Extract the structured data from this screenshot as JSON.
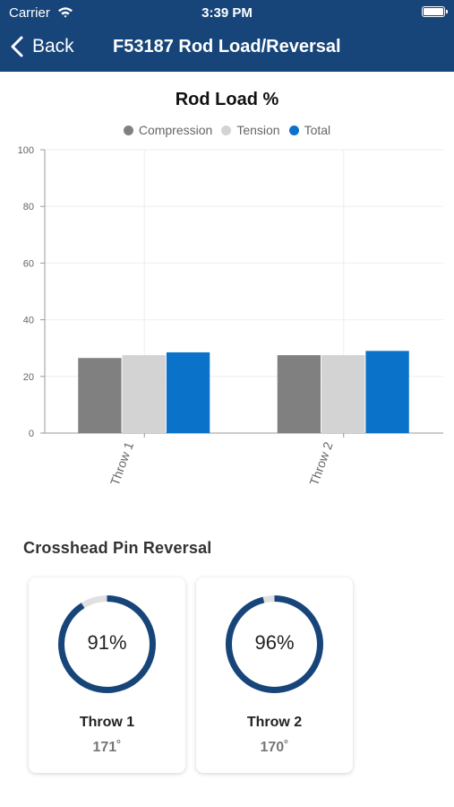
{
  "status": {
    "carrier": "Carrier",
    "time": "3:39 PM"
  },
  "nav": {
    "back_label": "Back",
    "title": "F53187 Rod Load/Reversal"
  },
  "colors": {
    "nav_bg": "#17457a",
    "compression": "#808080",
    "tension": "#d3d3d3",
    "total": "#0a72c9",
    "gauge": "#17457a",
    "gauge_track": "#e0e0e0"
  },
  "chart_data": {
    "type": "bar",
    "title": "Rod Load %",
    "categories": [
      "Throw 1",
      "Throw 2"
    ],
    "series": [
      {
        "name": "Compression",
        "values": [
          26.5,
          27.5
        ]
      },
      {
        "name": "Tension",
        "values": [
          27.5,
          27.5
        ]
      },
      {
        "name": "Total",
        "values": [
          28.5,
          29
        ]
      }
    ],
    "ylim": [
      0,
      100
    ],
    "yticks": [
      "0",
      "20",
      "40",
      "60",
      "80",
      "100"
    ],
    "grid": true,
    "legend": "top-center"
  },
  "reversal": {
    "title": "Crosshead Pin Reversal",
    "cards": [
      {
        "label": "Throw 1",
        "percent": 91,
        "percent_text": "91%",
        "degrees": "171˚"
      },
      {
        "label": "Throw 2",
        "percent": 96,
        "percent_text": "96%",
        "degrees": "170˚"
      }
    ]
  }
}
